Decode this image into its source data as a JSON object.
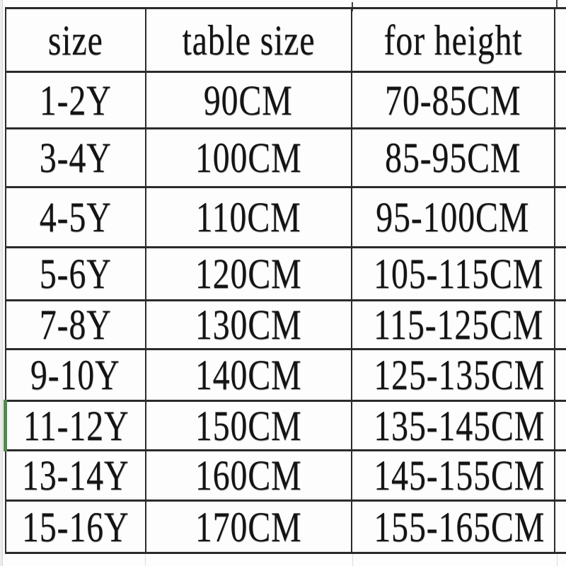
{
  "table": {
    "columns": [
      {
        "label": "size"
      },
      {
        "label": "table size"
      },
      {
        "label": "for height"
      }
    ],
    "rows": [
      {
        "size": "1-2Y",
        "table_size": "90CM",
        "for_height": "70-85CM"
      },
      {
        "size": "3-4Y",
        "table_size": "100CM",
        "for_height": "85-95CM"
      },
      {
        "size": "4-5Y",
        "table_size": "110CM",
        "for_height": "95-100CM"
      },
      {
        "size": "5-6Y",
        "table_size": "120CM",
        "for_height": "105-115CM"
      },
      {
        "size": "7-8Y",
        "table_size": "130CM",
        "for_height": "115-125CM"
      },
      {
        "size": "9-10Y",
        "table_size": "140CM",
        "for_height": "125-135CM"
      },
      {
        "size": "11-12Y",
        "table_size": "150CM",
        "for_height": "135-145CM"
      },
      {
        "size": "13-14Y",
        "table_size": "160CM",
        "for_height": "145-155CM"
      },
      {
        "size": "15-16Y",
        "table_size": "170CM",
        "for_height": "155-165CM"
      }
    ],
    "selected_row_index": 6
  },
  "colors": {
    "border": "#2b2b2b",
    "text": "#141414",
    "selection_green": "#4e8b4e",
    "sheet_strip": "#ececec",
    "faint_grid": "#dcdcdc"
  }
}
